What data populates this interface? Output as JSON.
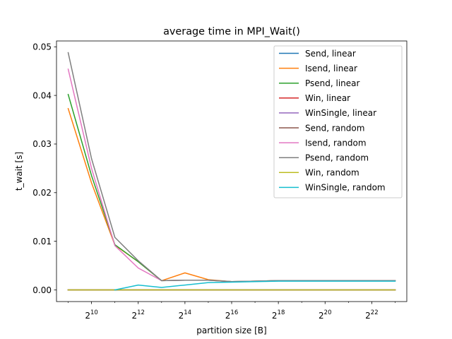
{
  "chart_data": {
    "type": "line",
    "title": "average time in MPI_Wait()",
    "xlabel": "partition size [B]",
    "ylabel": "t_wait [s]",
    "x_scale": "log2",
    "x": [
      512,
      1024,
      2048,
      4096,
      8192,
      16384,
      32768,
      65536,
      131072,
      262144,
      524288,
      1048576,
      2097152,
      4194304,
      8388608
    ],
    "xlim": [
      362,
      11863283
    ],
    "ylim": [
      -0.0024,
      0.0512
    ],
    "x_ticks": [
      {
        "value": 1024,
        "base": "2",
        "exp": "10"
      },
      {
        "value": 4096,
        "base": "2",
        "exp": "12"
      },
      {
        "value": 16384,
        "base": "2",
        "exp": "14"
      },
      {
        "value": 65536,
        "base": "2",
        "exp": "16"
      },
      {
        "value": 262144,
        "base": "2",
        "exp": "18"
      },
      {
        "value": 1048576,
        "base": "2",
        "exp": "20"
      },
      {
        "value": 4194304,
        "base": "2",
        "exp": "22"
      }
    ],
    "y_ticks": [
      {
        "value": 0.0,
        "label": "0.00"
      },
      {
        "value": 0.01,
        "label": "0.01"
      },
      {
        "value": 0.02,
        "label": "0.02"
      },
      {
        "value": 0.03,
        "label": "0.03"
      },
      {
        "value": 0.04,
        "label": "0.04"
      },
      {
        "value": 0.05,
        "label": "0.05"
      }
    ],
    "grid": false,
    "legend_position": "top-right",
    "series": [
      {
        "name": "Send, linear",
        "color": "#1f77b4",
        "values": [
          0.0,
          0.0,
          0.0,
          0.0,
          0.0,
          0.0,
          0.0,
          0.0,
          0.0,
          0.0,
          0.0,
          0.0,
          0.0,
          0.0,
          0.0
        ]
      },
      {
        "name": "Isend, linear",
        "color": "#ff7f0e",
        "values": [
          0.0373,
          0.022,
          0.0092,
          0.0058,
          0.0019,
          0.0035,
          0.0021,
          0.0017,
          0.0018,
          0.0019,
          0.0019,
          0.0019,
          0.0019,
          0.0019,
          0.0019
        ]
      },
      {
        "name": "Psend, linear",
        "color": "#2ca02c",
        "values": [
          0.0402,
          0.0235,
          0.0093,
          0.0058,
          0.0019,
          0.002,
          0.002,
          0.0017,
          0.0018,
          0.0019,
          0.0019,
          0.0019,
          0.0019,
          0.0019,
          0.0019
        ]
      },
      {
        "name": "Win, linear",
        "color": "#d62728",
        "values": [
          0.0,
          0.0,
          0.0,
          0.0,
          0.0,
          0.0,
          0.0,
          0.0,
          0.0,
          0.0,
          0.0,
          0.0,
          0.0,
          0.0,
          0.0
        ]
      },
      {
        "name": "WinSingle, linear",
        "color": "#9467bd",
        "values": [
          0.0,
          0.0,
          0.0,
          0.0,
          0.0,
          0.0,
          0.0,
          0.0,
          0.0,
          0.0,
          0.0,
          0.0,
          0.0,
          0.0,
          0.0
        ]
      },
      {
        "name": "Send, random",
        "color": "#8c564b",
        "values": [
          0.0,
          0.0,
          0.0,
          0.0,
          0.0,
          0.0,
          0.0,
          0.0,
          0.0,
          0.0,
          0.0,
          0.0,
          0.0,
          0.0,
          0.0
        ]
      },
      {
        "name": "Isend, random",
        "color": "#e377c2",
        "values": [
          0.0454,
          0.025,
          0.0091,
          0.0045,
          0.0019,
          0.002,
          0.002,
          0.0017,
          0.0018,
          0.0019,
          0.0019,
          0.0019,
          0.0019,
          0.0019,
          0.0019
        ]
      },
      {
        "name": "Psend, random",
        "color": "#7f7f7f",
        "values": [
          0.0488,
          0.027,
          0.0108,
          0.006,
          0.0019,
          0.002,
          0.002,
          0.0017,
          0.0018,
          0.0019,
          0.0019,
          0.0019,
          0.0019,
          0.0019,
          0.0019
        ]
      },
      {
        "name": "Win, random",
        "color": "#bcbd22",
        "values": [
          0.0,
          0.0,
          0.0,
          0.0,
          0.0,
          0.0,
          0.0,
          0.0,
          0.0,
          0.0,
          0.0,
          0.0,
          0.0,
          0.0,
          0.0
        ]
      },
      {
        "name": "WinSingle, random",
        "color": "#17becf",
        "values": [
          null,
          null,
          0.0,
          0.001,
          0.0005,
          0.001,
          0.0015,
          0.0016,
          0.0017,
          0.0018,
          0.0018,
          0.0018,
          0.0018,
          0.0018,
          0.0018
        ]
      }
    ]
  }
}
